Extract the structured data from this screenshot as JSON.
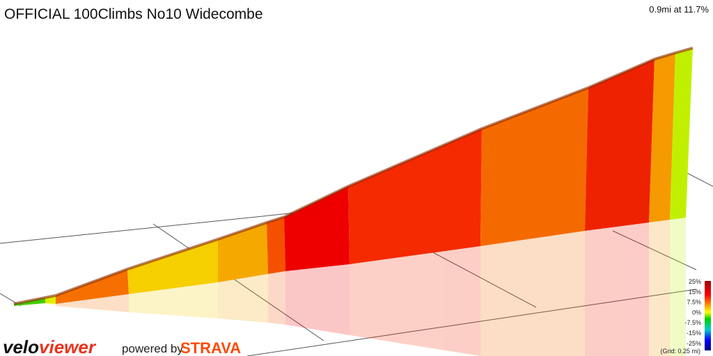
{
  "header": {
    "title": "OFFICIAL 100Climbs No10 Widecombe",
    "summary": "0.9mi at 11.7%"
  },
  "legend": {
    "labels": [
      "25%",
      "15%",
      "7.5%",
      "0%",
      "-7.5%",
      "-15%",
      "-25%"
    ],
    "grid_note": "(Grid: 0.25 mi)"
  },
  "footer": {
    "brand_velo": "velo",
    "brand_viewer": "viewer",
    "powered_by": "powered by",
    "strava": "STRAVA"
  }
}
